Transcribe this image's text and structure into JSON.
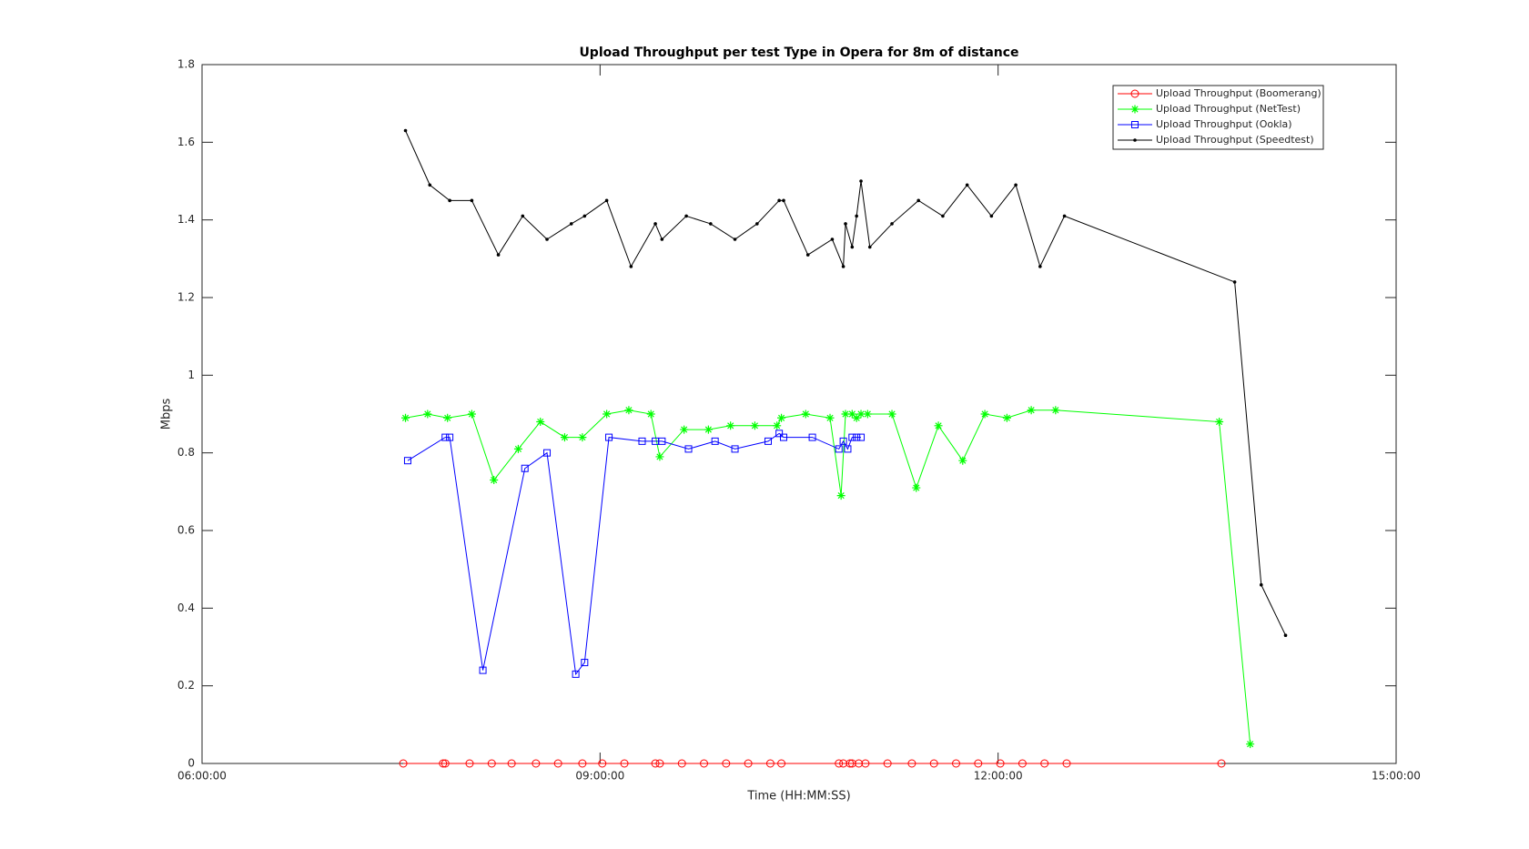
{
  "chart_data": {
    "type": "line",
    "title": "Upload Throughput per test Type in Opera for 8m of distance",
    "x_label": "Time (HH:MM:SS)",
    "y_label": "Mbps",
    "xlim": [
      "06:00:00",
      "15:00:00"
    ],
    "xticks": [
      "06:00:00",
      "09:00:00",
      "12:00:00",
      "15:00:00"
    ],
    "ylim": [
      0,
      1.8
    ],
    "yticks": [
      0,
      0.2,
      0.4,
      0.6,
      0.8,
      1,
      1.2,
      1.4,
      1.6,
      1.8
    ],
    "legend": "northeast",
    "series": [
      {
        "name": "Upload Throughput (Boomerang)",
        "color": "#ff0000",
        "marker": "circle",
        "x": [
          "07:31:00",
          "07:49:00",
          "07:50:00",
          "08:01:00",
          "08:11:00",
          "08:20:00",
          "08:31:00",
          "08:41:00",
          "08:52:00",
          "09:01:00",
          "09:11:00",
          "09:25:00",
          "09:27:00",
          "09:37:00",
          "09:47:00",
          "09:57:00",
          "10:07:00",
          "10:17:00",
          "10:22:00",
          "10:48:00",
          "10:50:00",
          "10:53:00",
          "10:54:00",
          "10:57:00",
          "11:00:00",
          "11:10:00",
          "11:21:00",
          "11:31:00",
          "11:41:00",
          "11:51:00",
          "12:01:00",
          "12:11:00",
          "12:21:00",
          "12:31:00",
          "13:41:00"
        ],
        "values": [
          0,
          0,
          0,
          0,
          0,
          0,
          0,
          0,
          0,
          0,
          0,
          0,
          0,
          0,
          0,
          0,
          0,
          0,
          0,
          0,
          0,
          0,
          0,
          0,
          0,
          0,
          0,
          0,
          0,
          0,
          0,
          0,
          0,
          0,
          0
        ]
      },
      {
        "name": "Upload Throughput (NetTest)",
        "color": "#00ff00",
        "marker": "star",
        "x": [
          "07:32:00",
          "07:42:00",
          "07:51:00",
          "08:02:00",
          "08:12:00",
          "08:23:00",
          "08:33:00",
          "08:44:00",
          "08:52:00",
          "09:03:00",
          "09:13:00",
          "09:23:00",
          "09:27:00",
          "09:38:00",
          "09:49:00",
          "09:59:00",
          "10:10:00",
          "10:20:00",
          "10:22:00",
          "10:33:00",
          "10:44:00",
          "10:49:00",
          "10:51:00",
          "10:54:00",
          "10:56:00",
          "10:58:00",
          "11:01:00",
          "11:12:00",
          "11:23:00",
          "11:33:00",
          "11:44:00",
          "11:54:00",
          "12:04:00",
          "12:15:00",
          "12:26:00",
          "13:40:00",
          "13:54:00"
        ],
        "values": [
          0.89,
          0.9,
          0.89,
          0.9,
          0.73,
          0.81,
          0.88,
          0.84,
          0.84,
          0.9,
          0.91,
          0.9,
          0.79,
          0.86,
          0.86,
          0.87,
          0.87,
          0.87,
          0.89,
          0.9,
          0.89,
          0.69,
          0.9,
          0.9,
          0.89,
          0.9,
          0.9,
          0.9,
          0.71,
          0.87,
          0.78,
          0.9,
          0.89,
          0.91,
          0.91,
          0.88,
          0.05
        ]
      },
      {
        "name": "Upload Throughput (Ookla)",
        "color": "#0000ff",
        "marker": "square",
        "x": [
          "07:33:00",
          "07:50:00",
          "07:52:00",
          "08:07:00",
          "08:26:00",
          "08:36:00",
          "08:49:00",
          "08:53:00",
          "09:04:00",
          "09:19:00",
          "09:25:00",
          "09:28:00",
          "09:40:00",
          "09:52:00",
          "10:01:00",
          "10:16:00",
          "10:21:00",
          "10:23:00",
          "10:36:00",
          "10:48:00",
          "10:50:00",
          "10:52:00",
          "10:54:00",
          "10:56:00",
          "10:58:00"
        ],
        "values": [
          0.78,
          0.84,
          0.84,
          0.24,
          0.76,
          0.8,
          0.23,
          0.26,
          0.84,
          0.83,
          0.83,
          0.83,
          0.81,
          0.83,
          0.81,
          0.83,
          0.85,
          0.84,
          0.84,
          0.81,
          0.83,
          0.81,
          0.84,
          0.84,
          0.84
        ]
      },
      {
        "name": "Upload Throughput (Speedtest)",
        "color": "#000000",
        "marker": "dot",
        "x": [
          "07:32:00",
          "07:43:00",
          "07:52:00",
          "08:02:00",
          "08:14:00",
          "08:25:00",
          "08:36:00",
          "08:47:00",
          "08:53:00",
          "09:03:00",
          "09:14:00",
          "09:25:00",
          "09:28:00",
          "09:39:00",
          "09:50:00",
          "10:01:00",
          "10:11:00",
          "10:21:00",
          "10:23:00",
          "10:34:00",
          "10:45:00",
          "10:50:00",
          "10:51:00",
          "10:54:00",
          "10:56:00",
          "10:58:00",
          "11:02:00",
          "11:12:00",
          "11:24:00",
          "11:35:00",
          "11:46:00",
          "11:57:00",
          "12:08:00",
          "12:19:00",
          "12:30:00",
          "13:47:00",
          "13:59:00",
          "14:10:00"
        ],
        "values": [
          1.63,
          1.49,
          1.45,
          1.45,
          1.31,
          1.41,
          1.35,
          1.39,
          1.41,
          1.45,
          1.28,
          1.39,
          1.35,
          1.41,
          1.39,
          1.35,
          1.39,
          1.45,
          1.45,
          1.31,
          1.35,
          1.28,
          1.39,
          1.33,
          1.41,
          1.5,
          1.33,
          1.39,
          1.45,
          1.41,
          1.49,
          1.41,
          1.49,
          1.28,
          1.41,
          1.24,
          0.46,
          0.33
        ]
      }
    ]
  }
}
